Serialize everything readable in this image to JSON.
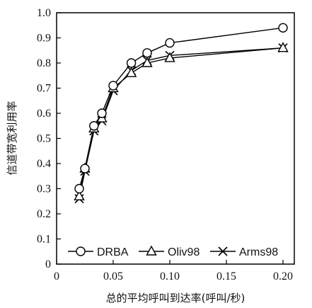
{
  "chart_data": {
    "type": "line",
    "xlabel": "总的平均呼叫到达率(呼叫/秒)",
    "ylabel": "信道带宽利用率",
    "xlim": [
      0,
      0.21
    ],
    "ylim": [
      0,
      1.0
    ],
    "x_ticks": [
      0,
      0.05,
      0.1,
      0.15,
      0.2
    ],
    "x_tick_labels": [
      "0",
      "0.05",
      "0.10",
      "0.15",
      "0.20"
    ],
    "y_ticks": [
      0,
      0.1,
      0.2,
      0.3,
      0.4,
      0.5,
      0.6,
      0.7,
      0.8,
      0.9,
      1.0
    ],
    "y_tick_labels": [
      "0",
      "0.1",
      "0.2",
      "0.3",
      "0.4",
      "0.5",
      "0.6",
      "0.7",
      "0.8",
      "0.9",
      "1.0"
    ],
    "grid": false,
    "legend_position": "bottom",
    "x": [
      0.02,
      0.025,
      0.033,
      0.04,
      0.05,
      0.066,
      0.08,
      0.1,
      0.2
    ],
    "series": [
      {
        "name": "DRBA",
        "marker": "circle",
        "values": [
          0.3,
          0.38,
          0.55,
          0.6,
          0.71,
          0.8,
          0.84,
          0.88,
          0.94
        ]
      },
      {
        "name": "Oliv98",
        "marker": "triangle",
        "values": [
          0.27,
          0.38,
          0.54,
          0.58,
          0.7,
          0.76,
          0.8,
          0.82,
          0.86
        ]
      },
      {
        "name": "Arms98",
        "marker": "x",
        "values": [
          0.26,
          0.37,
          0.53,
          0.57,
          0.69,
          0.77,
          0.81,
          0.83,
          0.86
        ]
      }
    ]
  }
}
